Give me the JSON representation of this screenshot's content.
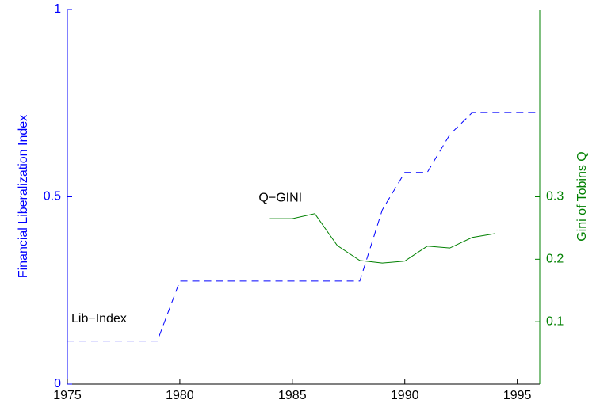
{
  "chart_data": {
    "type": "line",
    "x": [
      1975,
      1979,
      1980,
      1988,
      1989,
      1990,
      1991,
      1992,
      1993,
      1996,
      1984,
      1985,
      1986,
      1987,
      1994
    ],
    "series": [
      {
        "name": "Lib−Index",
        "color": "#0000ff",
        "line_style": "dashed",
        "x": [
          1975,
          1979,
          1980,
          1988,
          1989,
          1990,
          1991,
          1992,
          1993,
          1996
        ],
        "values": [
          0.115,
          0.115,
          0.275,
          0.275,
          0.465,
          0.565,
          0.565,
          0.666,
          0.725,
          0.725
        ]
      },
      {
        "name": "Q−GINI",
        "color": "#008000",
        "line_style": "solid",
        "axis": "y2",
        "x": [
          1984,
          1985,
          1986,
          1987,
          1988,
          1989,
          1990,
          1991,
          1992,
          1993,
          1994
        ],
        "values": [
          0.265,
          0.265,
          0.273,
          0.222,
          0.198,
          0.194,
          0.197,
          0.221,
          0.218,
          0.235,
          0.241
        ]
      }
    ],
    "ylabel": "Financial Liberalization Index",
    "y2label": "Gini of Tobins Q",
    "xlim": [
      1975,
      1996
    ],
    "xticks": [
      1975,
      1980,
      1985,
      1990,
      1995
    ],
    "ylim": [
      0,
      1
    ],
    "yticks": [
      0,
      0.5,
      1
    ],
    "y2lim": [
      0,
      0.6
    ],
    "y2ticks": [
      0.1,
      0.2,
      0.3
    ]
  }
}
